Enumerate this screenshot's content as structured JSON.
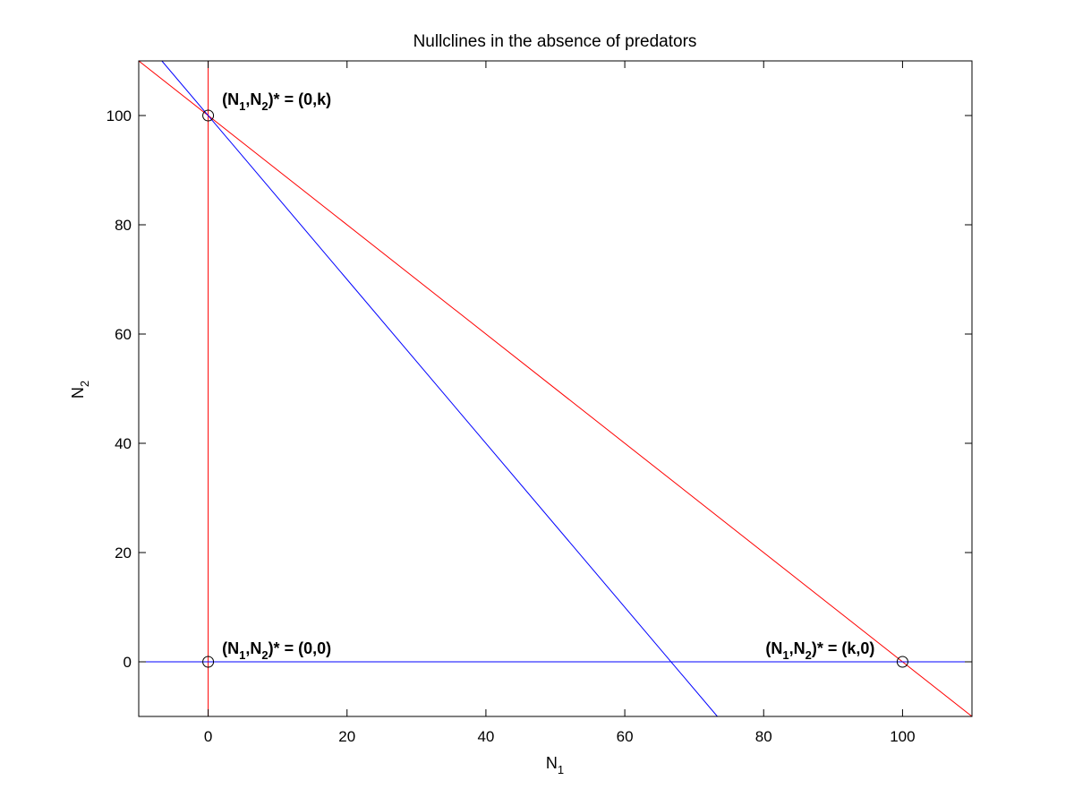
{
  "chart_data": {
    "type": "line",
    "title": "Nullclines in the absence of predators",
    "xlabel": {
      "base": "N",
      "sub": "1"
    },
    "ylabel": {
      "base": "N",
      "sub": "2"
    },
    "xlim": [
      -10,
      110
    ],
    "ylim": [
      -10,
      110
    ],
    "xticks": [
      0,
      20,
      40,
      60,
      80,
      100
    ],
    "yticks": [
      0,
      20,
      40,
      60,
      80,
      100
    ],
    "grid": false,
    "legend": "none",
    "series": [
      {
        "color": "#ff0000",
        "x": [
          0,
          0
        ],
        "y": [
          -10,
          110
        ]
      },
      {
        "color": "#ff0000",
        "x": [
          -10,
          110
        ],
        "y": [
          110,
          -10
        ]
      },
      {
        "color": "#0000ff",
        "x": [
          -10,
          110
        ],
        "y": [
          0,
          0
        ]
      },
      {
        "color": "#0000ff",
        "x": [
          -6.67,
          73.33
        ],
        "y": [
          110,
          -10
        ]
      }
    ],
    "points": [
      {
        "x": 0,
        "y": 100,
        "marker": "circle"
      },
      {
        "x": 0,
        "y": 0,
        "marker": "circle"
      },
      {
        "x": 100,
        "y": 0,
        "marker": "circle"
      }
    ],
    "annotations": [
      {
        "x": 2,
        "y": 102,
        "anchor": "start",
        "prefix": "(N",
        "s1": "1",
        "mid": ",N",
        "s2": "2",
        "suffix": ")* = (0,k)"
      },
      {
        "x": 2,
        "y": 1.5,
        "anchor": "start",
        "prefix": "(N",
        "s1": "1",
        "mid": ",N",
        "s2": "2",
        "suffix": ")* = (0,0)"
      },
      {
        "x": 96,
        "y": 1.5,
        "anchor": "end",
        "prefix": "(N",
        "s1": "1",
        "mid": ",N",
        "s2": "2",
        "suffix": ")* = (k,0)"
      }
    ]
  }
}
